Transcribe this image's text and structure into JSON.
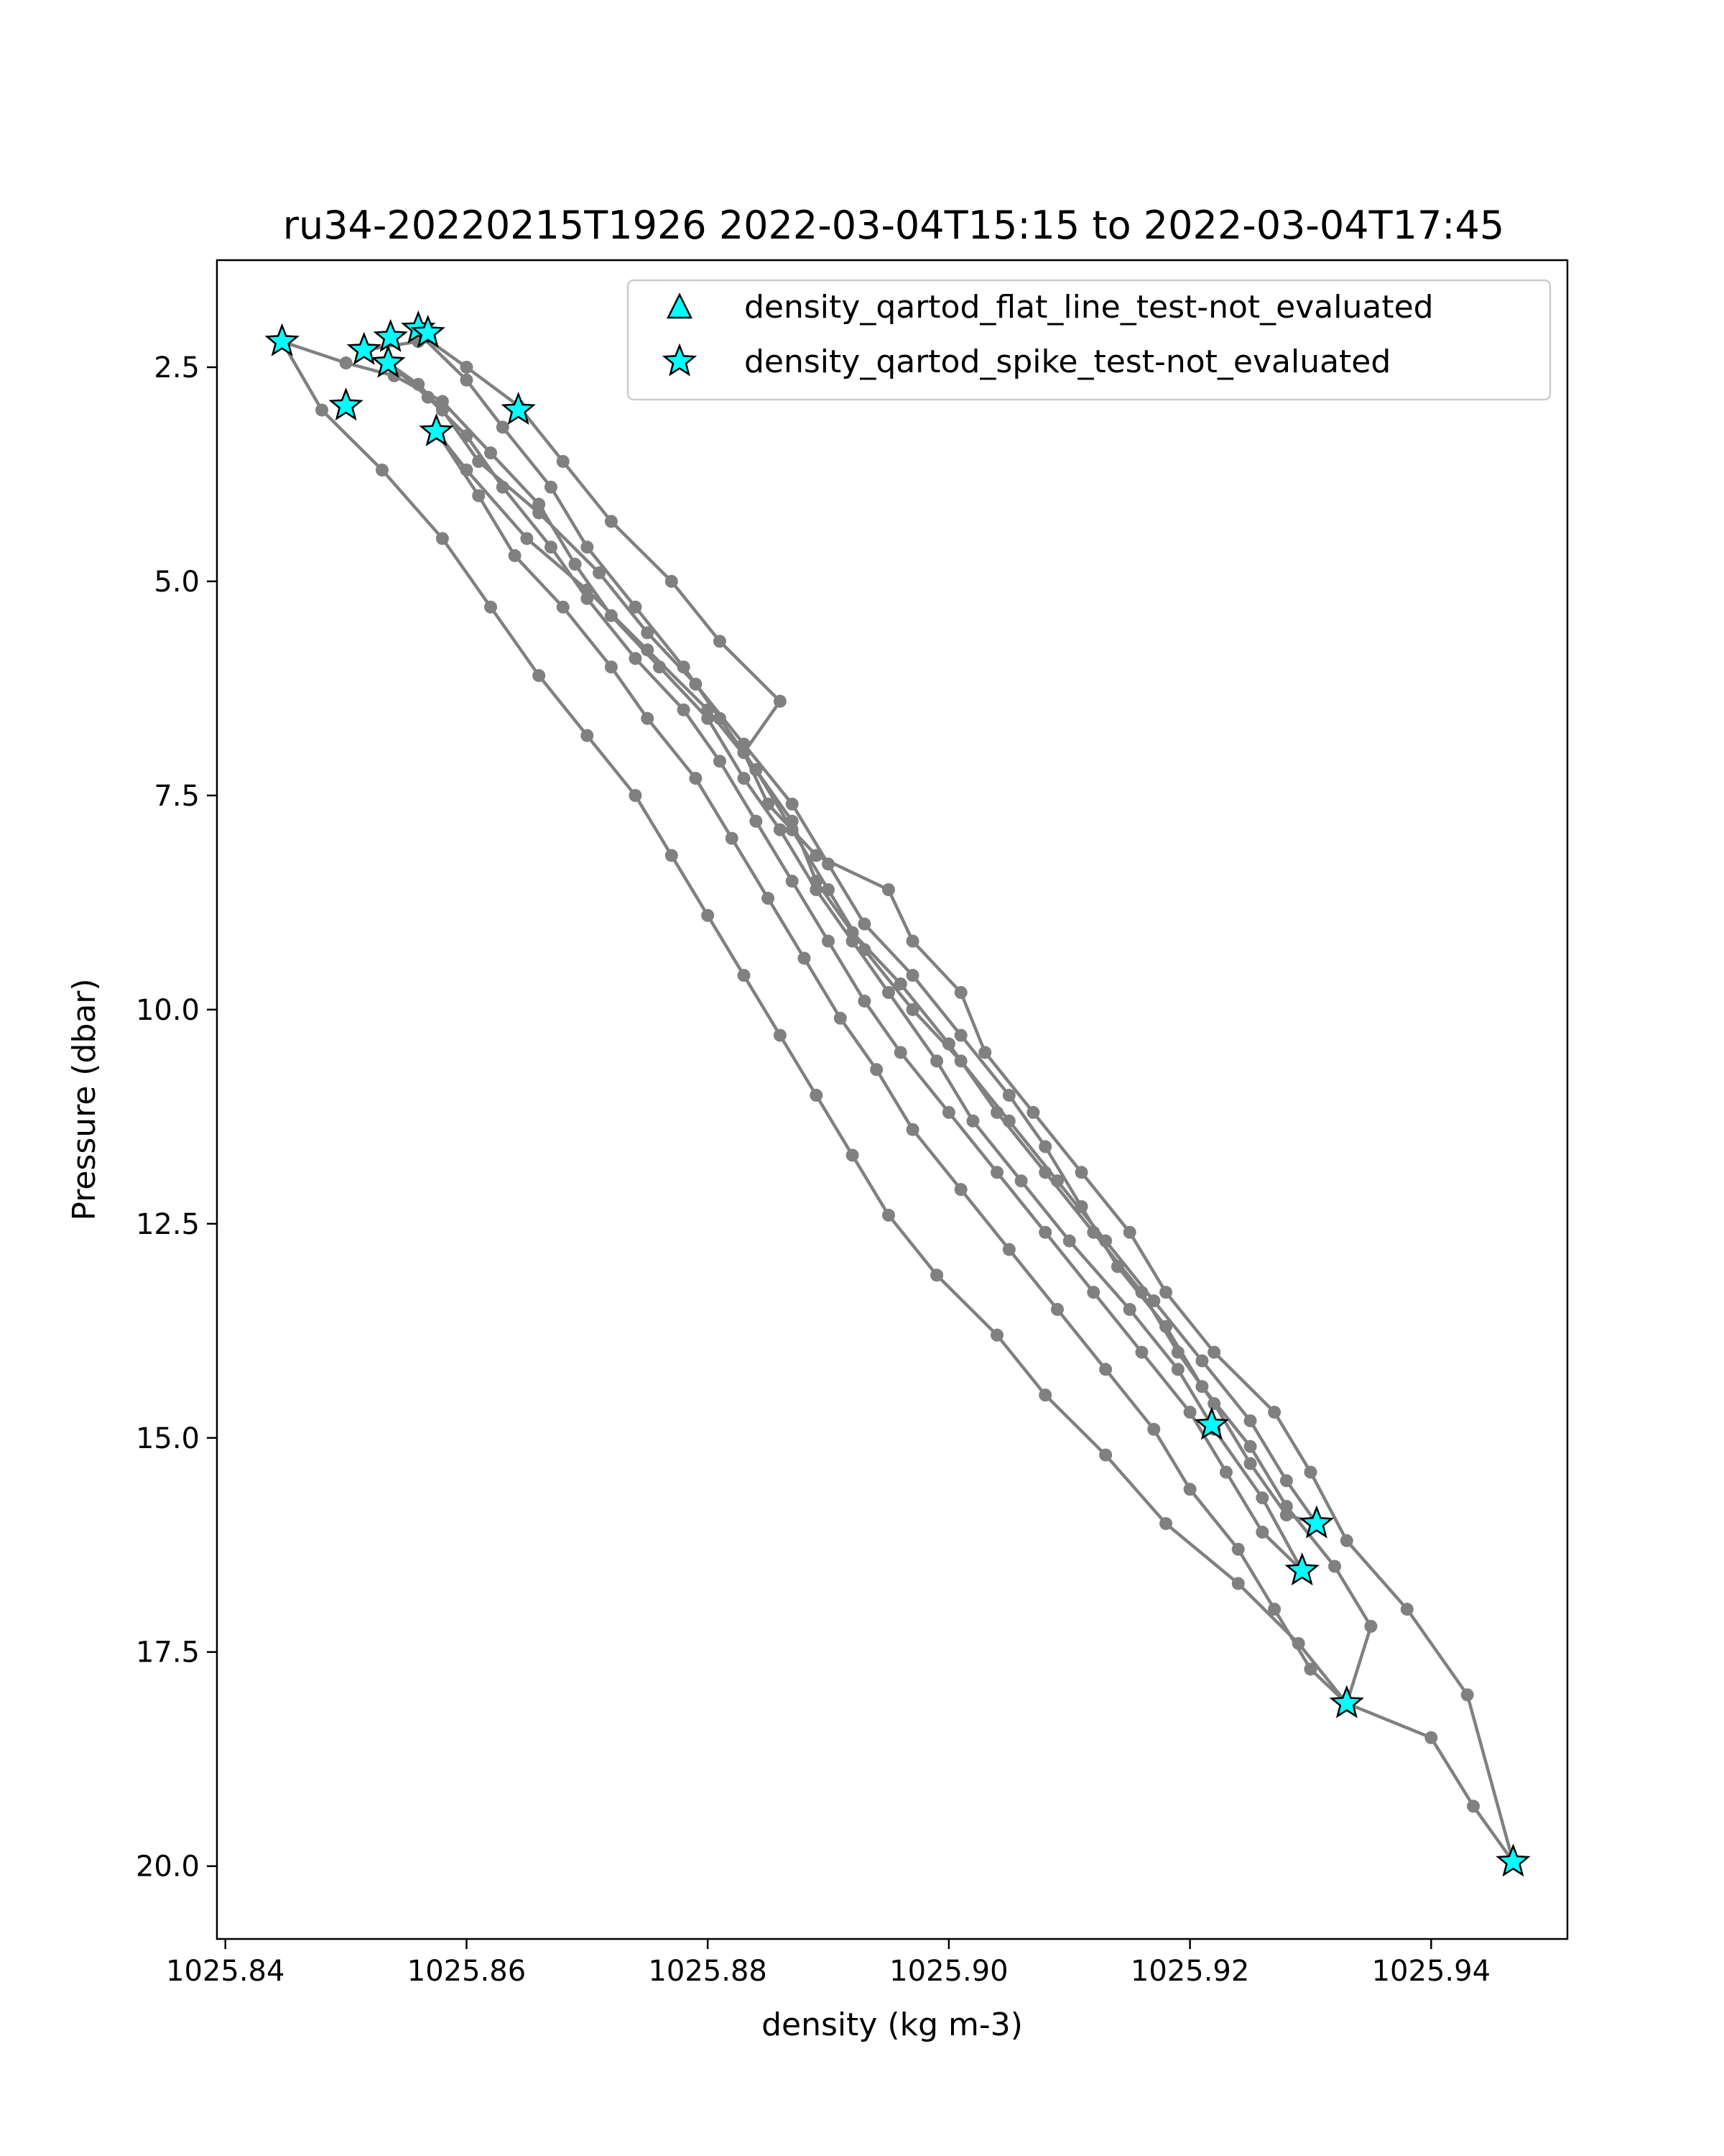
{
  "chart_data": {
    "type": "scatter",
    "title": "ru34-20220215T1926 2022-03-04T15:15 to 2022-03-04T17:45",
    "xlabel": "density (kg m-3)",
    "ylabel": "Pressure (dbar)",
    "xlim": [
      1025.8393,
      1025.9513
    ],
    "ylim": [
      20.85,
      1.25
    ],
    "y_inverted": true,
    "x_ticks": [
      1025.84,
      1025.86,
      1025.88,
      1025.9,
      1025.92,
      1025.94
    ],
    "x_tick_labels": [
      "1025.84",
      "1025.86",
      "1025.88",
      "1025.90",
      "1025.92",
      "1025.94"
    ],
    "y_ticks": [
      2.5,
      5.0,
      7.5,
      10.0,
      12.5,
      15.0,
      17.5,
      20.0
    ],
    "y_tick_labels": [
      "2.5",
      "5.0",
      "7.5",
      "10.0",
      "12.5",
      "15.0",
      "17.5",
      "20.0"
    ],
    "grid": false,
    "legend_position": "top-right",
    "colors": {
      "profile_line": "#808080",
      "marker_fill": "#00ffff",
      "marker_edge": "#000000"
    },
    "profile_series": [
      {
        "values": [
          [
            1025.9468,
            19.95
          ],
          [
            1025.9435,
            19.3
          ],
          [
            1025.94,
            18.5
          ],
          [
            1025.933,
            18.1
          ],
          [
            1025.929,
            17.4
          ],
          [
            1025.924,
            16.7
          ],
          [
            1025.918,
            16.0
          ],
          [
            1025.913,
            15.2
          ],
          [
            1025.908,
            14.5
          ],
          [
            1025.904,
            13.8
          ],
          [
            1025.899,
            13.1
          ],
          [
            1025.895,
            12.4
          ],
          [
            1025.892,
            11.7
          ],
          [
            1025.889,
            11.0
          ],
          [
            1025.886,
            10.3
          ],
          [
            1025.883,
            9.6
          ],
          [
            1025.88,
            8.9
          ],
          [
            1025.877,
            8.2
          ],
          [
            1025.874,
            7.5
          ],
          [
            1025.87,
            6.8
          ],
          [
            1025.866,
            6.1
          ],
          [
            1025.862,
            5.3
          ],
          [
            1025.858,
            4.5
          ],
          [
            1025.853,
            3.7
          ],
          [
            1025.848,
            3.0
          ],
          [
            1025.8447,
            2.2
          ]
        ]
      },
      {
        "values": [
          [
            1025.8447,
            2.2
          ],
          [
            1025.85,
            2.45
          ],
          [
            1025.854,
            2.6
          ],
          [
            1025.858,
            2.9
          ],
          [
            1025.862,
            3.5
          ],
          [
            1025.866,
            4.1
          ],
          [
            1025.869,
            4.8
          ],
          [
            1025.872,
            5.4
          ],
          [
            1025.876,
            6.0
          ],
          [
            1025.88,
            6.6
          ],
          [
            1025.883,
            7.3
          ],
          [
            1025.886,
            7.9
          ],
          [
            1025.889,
            8.6
          ],
          [
            1025.892,
            9.2
          ],
          [
            1025.895,
            9.8
          ],
          [
            1025.899,
            10.6
          ],
          [
            1025.902,
            11.3
          ],
          [
            1025.906,
            12.0
          ],
          [
            1025.91,
            12.7
          ],
          [
            1025.915,
            13.5
          ],
          [
            1025.919,
            14.2
          ],
          [
            1025.922,
            14.9
          ],
          [
            1025.926,
            15.7
          ],
          [
            1025.9293,
            16.55
          ]
        ]
      },
      {
        "values": [
          [
            1025.9293,
            16.55
          ],
          [
            1025.926,
            16.1
          ],
          [
            1025.923,
            15.4
          ],
          [
            1025.92,
            14.7
          ],
          [
            1025.916,
            14.0
          ],
          [
            1025.912,
            13.3
          ],
          [
            1025.908,
            12.6
          ],
          [
            1025.904,
            11.9
          ],
          [
            1025.9,
            11.2
          ],
          [
            1025.896,
            10.5
          ],
          [
            1025.893,
            9.9
          ],
          [
            1025.89,
            9.2
          ],
          [
            1025.887,
            8.5
          ],
          [
            1025.884,
            7.8
          ],
          [
            1025.881,
            7.1
          ],
          [
            1025.878,
            6.5
          ],
          [
            1025.874,
            5.9
          ],
          [
            1025.87,
            5.2
          ],
          [
            1025.867,
            4.6
          ],
          [
            1025.863,
            3.9
          ],
          [
            1025.86,
            3.3
          ],
          [
            1025.8568,
            2.85
          ],
          [
            1025.8535,
            2.45
          ]
        ]
      },
      {
        "values": [
          [
            1025.8535,
            2.45
          ],
          [
            1025.856,
            2.7
          ],
          [
            1025.858,
            3.0
          ],
          [
            1025.861,
            3.6
          ],
          [
            1025.866,
            4.2
          ],
          [
            1025.871,
            4.9
          ],
          [
            1025.875,
            5.6
          ],
          [
            1025.879,
            6.2
          ],
          [
            1025.883,
            6.9
          ],
          [
            1025.887,
            7.6
          ],
          [
            1025.89,
            8.3
          ],
          [
            1025.893,
            9.0
          ],
          [
            1025.897,
            9.6
          ],
          [
            1025.901,
            10.3
          ],
          [
            1025.905,
            11.0
          ],
          [
            1025.908,
            11.6
          ],
          [
            1025.911,
            12.3
          ],
          [
            1025.914,
            13.0
          ],
          [
            1025.918,
            13.7
          ],
          [
            1025.921,
            14.4
          ],
          [
            1025.925,
            15.1
          ],
          [
            1025.928,
            15.8
          ],
          [
            1025.932,
            16.5
          ],
          [
            1025.935,
            17.2
          ],
          [
            1025.933,
            18.1
          ]
        ]
      },
      {
        "values": [
          [
            1025.933,
            18.1
          ],
          [
            1025.93,
            17.7
          ],
          [
            1025.927,
            17.0
          ],
          [
            1025.924,
            16.3
          ],
          [
            1025.92,
            15.6
          ],
          [
            1025.917,
            14.9
          ],
          [
            1025.913,
            14.2
          ],
          [
            1025.909,
            13.5
          ],
          [
            1025.905,
            12.8
          ],
          [
            1025.901,
            12.1
          ],
          [
            1025.897,
            11.4
          ],
          [
            1025.894,
            10.7
          ],
          [
            1025.891,
            10.1
          ],
          [
            1025.888,
            9.4
          ],
          [
            1025.885,
            8.7
          ],
          [
            1025.882,
            8.0
          ],
          [
            1025.879,
            7.3
          ],
          [
            1025.875,
            6.6
          ],
          [
            1025.872,
            6.0
          ],
          [
            1025.868,
            5.3
          ],
          [
            1025.864,
            4.7
          ],
          [
            1025.861,
            4.0
          ],
          [
            1025.8575,
            3.25
          ]
        ]
      },
      {
        "values": [
          [
            1025.8575,
            3.25
          ],
          [
            1025.86,
            3.7
          ],
          [
            1025.865,
            4.5
          ],
          [
            1025.87,
            5.1
          ],
          [
            1025.875,
            5.8
          ],
          [
            1025.88,
            6.5
          ],
          [
            1025.884,
            7.2
          ],
          [
            1025.887,
            7.8
          ],
          [
            1025.889,
            8.5
          ],
          [
            1025.892,
            9.1
          ],
          [
            1025.896,
            9.7
          ],
          [
            1025.9,
            10.4
          ],
          [
            1025.904,
            11.2
          ],
          [
            1025.908,
            11.9
          ],
          [
            1025.912,
            12.6
          ],
          [
            1025.916,
            13.3
          ],
          [
            1025.919,
            14.0
          ],
          [
            1025.922,
            14.6
          ],
          [
            1025.925,
            15.3
          ],
          [
            1025.928,
            15.9
          ],
          [
            1025.9305,
            16.0
          ]
        ]
      },
      {
        "values": [
          [
            1025.9305,
            16.0
          ],
          [
            1025.928,
            15.5
          ],
          [
            1025.925,
            14.8
          ],
          [
            1025.921,
            14.1
          ],
          [
            1025.917,
            13.4
          ],
          [
            1025.913,
            12.7
          ],
          [
            1025.909,
            12.0
          ],
          [
            1025.905,
            11.3
          ],
          [
            1025.901,
            10.6
          ],
          [
            1025.897,
            10.0
          ],
          [
            1025.893,
            9.3
          ],
          [
            1025.89,
            8.6
          ],
          [
            1025.887,
            7.9
          ],
          [
            1025.884,
            7.2
          ],
          [
            1025.881,
            6.6
          ],
          [
            1025.878,
            6.0
          ],
          [
            1025.874,
            5.3
          ],
          [
            1025.87,
            4.6
          ],
          [
            1025.867,
            3.9
          ],
          [
            1025.863,
            3.2
          ],
          [
            1025.86,
            2.65
          ],
          [
            1025.856,
            2.1
          ]
        ]
      },
      {
        "values": [
          [
            1025.8565,
            2.15
          ],
          [
            1025.86,
            2.5
          ],
          [
            1025.8643,
            2.95
          ],
          [
            1025.868,
            3.6
          ],
          [
            1025.872,
            4.3
          ],
          [
            1025.877,
            5.0
          ],
          [
            1025.881,
            5.7
          ],
          [
            1025.886,
            6.4
          ],
          [
            1025.883,
            7.0
          ],
          [
            1025.885,
            7.6
          ],
          [
            1025.889,
            8.2
          ],
          [
            1025.895,
            8.6
          ],
          [
            1025.897,
            9.2
          ],
          [
            1025.901,
            9.8
          ],
          [
            1025.903,
            10.5
          ],
          [
            1025.907,
            11.2
          ],
          [
            1025.911,
            11.9
          ],
          [
            1025.915,
            12.6
          ],
          [
            1025.918,
            13.3
          ],
          [
            1025.922,
            14.0
          ],
          [
            1025.927,
            14.7
          ],
          [
            1025.93,
            15.4
          ],
          [
            1025.933,
            16.2
          ],
          [
            1025.938,
            17.0
          ],
          [
            1025.943,
            18.0
          ],
          [
            1025.9468,
            19.95
          ]
        ]
      },
      {
        "values": [
          [
            1025.8515,
            2.3
          ],
          [
            1025.856,
            2.2
          ]
        ]
      }
    ],
    "series": [
      {
        "name": "density_qartod_flat_line_test-not_evaluated",
        "marker": "triangle",
        "values": []
      },
      {
        "name": "density_qartod_spike_test-not_evaluated",
        "marker": "star",
        "values": [
          [
            1025.8447,
            2.2
          ],
          [
            1025.8515,
            2.3
          ],
          [
            1025.8535,
            2.45
          ],
          [
            1025.8537,
            2.15
          ],
          [
            1025.856,
            2.05
          ],
          [
            1025.8568,
            2.1
          ],
          [
            1025.85,
            2.95
          ],
          [
            1025.8575,
            3.25
          ],
          [
            1025.8643,
            3.0
          ],
          [
            1025.9218,
            14.85
          ],
          [
            1025.9305,
            16.0
          ],
          [
            1025.9293,
            16.55
          ],
          [
            1025.933,
            18.1
          ],
          [
            1025.9468,
            19.95
          ]
        ]
      }
    ]
  }
}
